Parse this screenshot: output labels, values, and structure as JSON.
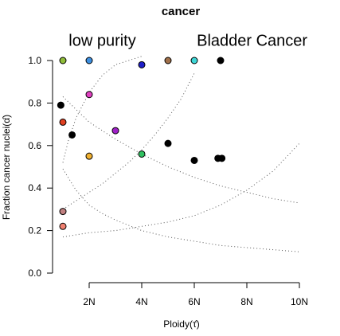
{
  "chart_data": {
    "type": "scatter",
    "title": "cancer",
    "xlabel": "Ploidy(τ̂)",
    "ylabel": "Fraction cancer nuclei(α̂)",
    "xlim": [
      1,
      10
    ],
    "ylim": [
      0,
      1
    ],
    "x_ticks": [
      2,
      4,
      6,
      8,
      10
    ],
    "x_tick_labels": [
      "2N",
      "4N",
      "6N",
      "8N",
      "10N"
    ],
    "y_ticks": [
      0.0,
      0.2,
      0.4,
      0.6,
      0.8,
      1.0
    ],
    "y_tick_labels": [
      "0.0",
      "0.2",
      "0.4",
      "0.6",
      "0.8",
      "1.0"
    ],
    "grid": false,
    "legend": "none",
    "annotations": [
      {
        "text": "low purity",
        "x": 2.5,
        "y": 1.07
      },
      {
        "text": "Bladder Cancer",
        "x": 8.2,
        "y": 1.07
      }
    ],
    "points": [
      {
        "x": 1.0,
        "y": 1.0,
        "color": "#8fbc3a"
      },
      {
        "x": 2.0,
        "y": 1.0,
        "color": "#3d8fe0"
      },
      {
        "x": 4.0,
        "y": 0.98,
        "color": "#1e1ec8"
      },
      {
        "x": 5.0,
        "y": 1.0,
        "color": "#a0704a"
      },
      {
        "x": 6.0,
        "y": 1.0,
        "color": "#3ed6d6"
      },
      {
        "x": 7.0,
        "y": 1.0,
        "color": "#000000"
      },
      {
        "x": 0.92,
        "y": 0.79,
        "color": "#000000"
      },
      {
        "x": 2.0,
        "y": 0.84,
        "color": "#e040c0"
      },
      {
        "x": 1.0,
        "y": 0.71,
        "color": "#e04020"
      },
      {
        "x": 1.35,
        "y": 0.65,
        "color": "#000000"
      },
      {
        "x": 3.0,
        "y": 0.67,
        "color": "#a020c8"
      },
      {
        "x": 5.0,
        "y": 0.61,
        "color": "#000000"
      },
      {
        "x": 2.0,
        "y": 0.55,
        "color": "#f0b030"
      },
      {
        "x": 4.0,
        "y": 0.56,
        "color": "#30c060"
      },
      {
        "x": 6.0,
        "y": 0.53,
        "color": "#000000"
      },
      {
        "x": 6.9,
        "y": 0.54,
        "color": "#000000"
      },
      {
        "x": 7.05,
        "y": 0.54,
        "color": "#000000"
      },
      {
        "x": 1.0,
        "y": 0.29,
        "color": "#c08080"
      },
      {
        "x": 1.0,
        "y": 0.22,
        "color": "#f08070"
      }
    ],
    "dotted_curves": [
      {
        "x": [
          1.0,
          1.2,
          1.5,
          2.0,
          2.5,
          3.0,
          3.5,
          4.0
        ],
        "y": [
          0.52,
          0.62,
          0.73,
          0.85,
          0.93,
          0.98,
          1.0,
          1.02
        ]
      },
      {
        "x": [
          1.0,
          1.5,
          2.0,
          2.5,
          3.0,
          3.5,
          4.0,
          4.5,
          5.0,
          5.5,
          6.0
        ],
        "y": [
          0.3,
          0.34,
          0.38,
          0.42,
          0.47,
          0.52,
          0.58,
          0.65,
          0.73,
          0.82,
          0.94
        ]
      },
      {
        "x": [
          1.0,
          2.0,
          3.0,
          4.0,
          5.0,
          6.0,
          7.0,
          8.0,
          9.0,
          10.0
        ],
        "y": [
          0.17,
          0.19,
          0.2,
          0.22,
          0.24,
          0.27,
          0.32,
          0.39,
          0.48,
          0.61
        ]
      },
      {
        "x": [
          1.0,
          1.5,
          2.0,
          3.0,
          4.0,
          5.0,
          6.0,
          7.0,
          8.0,
          9.0,
          10.0
        ],
        "y": [
          0.83,
          0.77,
          0.71,
          0.63,
          0.56,
          0.5,
          0.45,
          0.41,
          0.38,
          0.35,
          0.33
        ]
      },
      {
        "x": [
          1.0,
          1.5,
          2.0,
          2.5,
          3.0,
          4.0,
          5.0,
          6.0,
          7.0,
          8.0,
          9.0,
          10.0
        ],
        "y": [
          0.49,
          0.39,
          0.32,
          0.28,
          0.25,
          0.2,
          0.17,
          0.15,
          0.13,
          0.12,
          0.11,
          0.1
        ]
      }
    ]
  }
}
